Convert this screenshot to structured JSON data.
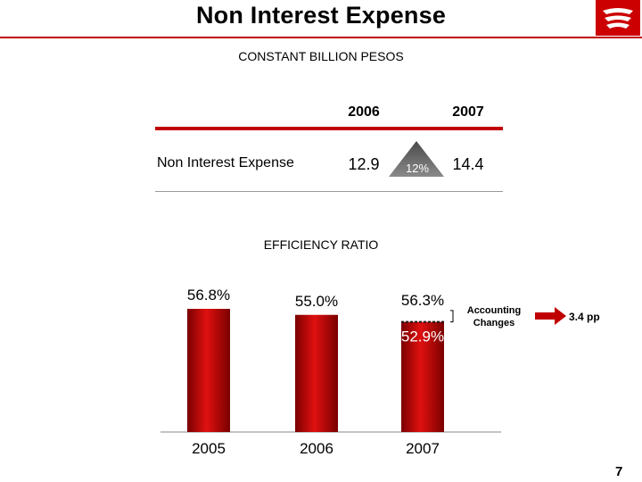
{
  "header": {
    "title": "Non Interest Expense",
    "units": "CONSTANT BILLION PESOS"
  },
  "table": {
    "years": [
      "2006",
      "2007"
    ],
    "row_label": "Non Interest Expense",
    "values": [
      "12.9",
      "14.4"
    ],
    "growth": "12%"
  },
  "section_title": "EFFICIENCY RATIO",
  "chart_data": {
    "type": "bar",
    "categories": [
      "2005",
      "2006",
      "2007"
    ],
    "values": [
      56.8,
      55.0,
      56.3
    ],
    "value_labels": [
      "56.8%",
      "55.0%",
      "56.3%"
    ],
    "adjusted_2007": 52.9,
    "adjusted_label": "52.9%",
    "annotation": "Accounting Changes",
    "annotation_value": "3.4 pp",
    "bar_color": "#c00000"
  },
  "footer": {
    "page_number": "7"
  },
  "colors": {
    "accent": "#c00000"
  }
}
